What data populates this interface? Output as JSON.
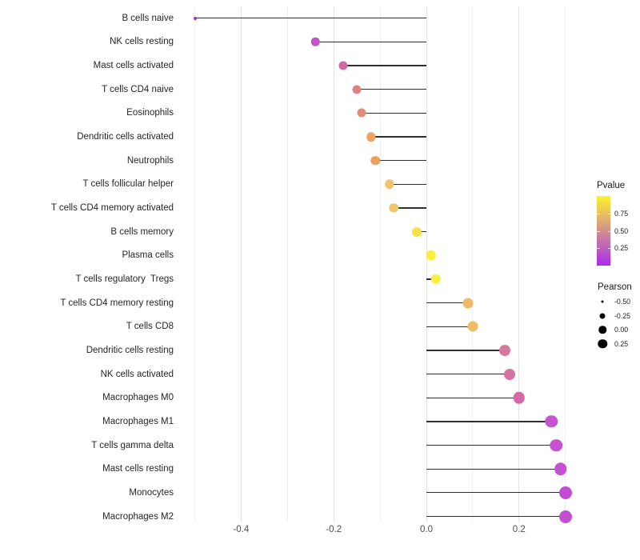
{
  "chart_data": {
    "type": "lollipop",
    "title": "",
    "xlabel": "",
    "ylabel": "",
    "xlim": [
      -0.54,
      0.34
    ],
    "grid": {
      "step": 0.1,
      "range": [
        -0.5,
        0.3
      ],
      "horizontal": false
    },
    "x_ticks": [
      {
        "label": "-0.4",
        "value": -0.4
      },
      {
        "label": "-0.2",
        "value": -0.2
      },
      {
        "label": "0.0",
        "value": 0.0
      },
      {
        "label": "0.2",
        "value": 0.2
      }
    ],
    "points": [
      {
        "label": "B cells naive",
        "pearson": -0.5,
        "pvalue_approx": 0.03,
        "color": "#9B30E0",
        "size": 4
      },
      {
        "label": "NK cells resting",
        "pearson": -0.24,
        "pvalue_approx": 0.19,
        "color": "#C353CB",
        "size": 10.5
      },
      {
        "label": "Mast cells activated",
        "pearson": -0.18,
        "pvalue_approx": 0.33,
        "color": "#D269A2",
        "size": 11
      },
      {
        "label": "T cells CD4 naive",
        "pearson": -0.15,
        "pvalue_approx": 0.48,
        "color": "#DC8287",
        "size": 11
      },
      {
        "label": "Eosinophils",
        "pearson": -0.14,
        "pvalue_approx": 0.53,
        "color": "#E18E79",
        "size": 11
      },
      {
        "label": "Dendritic cells activated",
        "pearson": -0.12,
        "pvalue_approx": 0.64,
        "color": "#EAA464",
        "size": 11.5
      },
      {
        "label": "Neutrophils",
        "pearson": -0.11,
        "pvalue_approx": 0.64,
        "color": "#E9A15F",
        "size": 11.5
      },
      {
        "label": "T cells follicular helper",
        "pearson": -0.08,
        "pvalue_approx": 0.72,
        "color": "#F1C46C",
        "size": 11.5
      },
      {
        "label": "T cells CD4 memory activated",
        "pearson": -0.07,
        "pvalue_approx": 0.73,
        "color": "#F0C66E",
        "size": 11.5
      },
      {
        "label": "B cells memory",
        "pearson": -0.02,
        "pvalue_approx": 0.87,
        "color": "#F5E24A",
        "size": 12
      },
      {
        "label": "Plasma cells",
        "pearson": 0.01,
        "pvalue_approx": 0.95,
        "color": "#FAF03C",
        "size": 12.5
      },
      {
        "label": "T cells regulatory  Tregs",
        "pearson": 0.02,
        "pvalue_approx": 0.94,
        "color": "#F9EF3E",
        "size": 12.5
      },
      {
        "label": "T cells CD4 memory resting",
        "pearson": 0.09,
        "pvalue_approx": 0.68,
        "color": "#EFB96A",
        "size": 13
      },
      {
        "label": "T cells CD8",
        "pearson": 0.1,
        "pvalue_approx": 0.69,
        "color": "#EFBC68",
        "size": 13
      },
      {
        "label": "Dendritic cells resting",
        "pearson": 0.17,
        "pvalue_approx": 0.41,
        "color": "#D9769E",
        "size": 14
      },
      {
        "label": "NK cells activated",
        "pearson": 0.18,
        "pvalue_approx": 0.4,
        "color": "#D972A0",
        "size": 14
      },
      {
        "label": "Macrophages M0",
        "pearson": 0.2,
        "pvalue_approx": 0.36,
        "color": "#D468A9",
        "size": 14.5
      },
      {
        "label": "Macrophages M1",
        "pearson": 0.27,
        "pvalue_approx": 0.19,
        "color": "#C653CF",
        "size": 15.5
      },
      {
        "label": "T cells gamma delta",
        "pearson": 0.28,
        "pvalue_approx": 0.18,
        "color": "#C750D1",
        "size": 15.5
      },
      {
        "label": "Mast cells resting",
        "pearson": 0.29,
        "pvalue_approx": 0.18,
        "color": "#C651D0",
        "size": 15.5
      },
      {
        "label": "Monocytes",
        "pearson": 0.3,
        "pvalue_approx": 0.16,
        "color": "#C24CD3",
        "size": 16
      },
      {
        "label": "Macrophages M2",
        "pearson": 0.3,
        "pvalue_approx": 0.17,
        "color": "#C150D2",
        "size": 16
      }
    ],
    "legend": {
      "color": {
        "title": "Pvalue",
        "range": [
          0,
          1
        ],
        "gradient_top": "#FCF32B",
        "gradient_bottom": "#A92CEF",
        "ticks": [
          {
            "label": "0.75",
            "value": 0.75
          },
          {
            "label": "0.50",
            "value": 0.5
          },
          {
            "label": "0.25",
            "value": 0.25
          }
        ]
      },
      "size": {
        "title": "Pearson",
        "dot_color": "#000000",
        "entries": [
          {
            "label": "-0.50",
            "d": 3
          },
          {
            "label": "-0.25",
            "d": 7
          },
          {
            "label": "0.00",
            "d": 9.5
          },
          {
            "label": "0.25",
            "d": 11.5
          }
        ]
      }
    },
    "style": {
      "stem_color": "#2e2e2e",
      "grid_major_color": "#e3e3e3",
      "grid_minor_color": "#f0f0f0",
      "axis_text_color": "#4d4d4d"
    }
  }
}
